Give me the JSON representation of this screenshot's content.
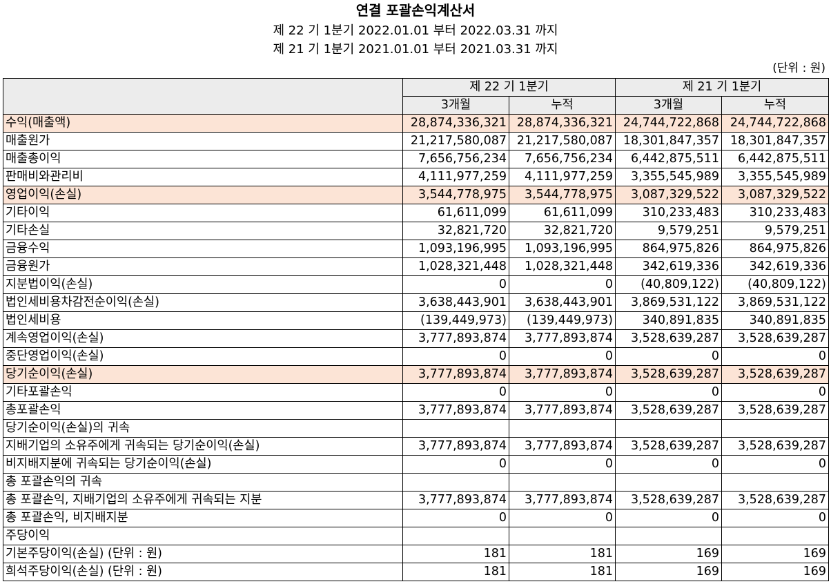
{
  "title": "연결 포괄손익계산서",
  "periods": [
    "제 22 기 1분기 2022.01.01 부터 2022.03.31 까지",
    "제 21 기 1분기 2021.01.01 부터 2021.03.31 까지"
  ],
  "unit": "(단위 : 원)",
  "table": {
    "period_headers": [
      "제 22 기 1분기",
      "제 21 기 1분기"
    ],
    "sub_headers": [
      "3개월",
      "누적",
      "3개월",
      "누적"
    ],
    "highlight_color": "#fce4d6",
    "rows": [
      {
        "label": "수익(매출액)",
        "values": [
          "28,874,336,321",
          "28,874,336,321",
          "24,744,722,868",
          "24,744,722,868"
        ]
      },
      {
        "label": "매출원가",
        "values": [
          "21,217,580,087",
          "21,217,580,087",
          "18,301,847,357",
          "18,301,847,357"
        ]
      },
      {
        "label": "매출총이익",
        "values": [
          "7,656,756,234",
          "7,656,756,234",
          "6,442,875,511",
          "6,442,875,511"
        ]
      },
      {
        "label": "판매비와관리비",
        "values": [
          "4,111,977,259",
          "4,111,977,259",
          "3,355,545,989",
          "3,355,545,989"
        ]
      },
      {
        "label": "영업이익(손실)",
        "values": [
          "3,544,778,975",
          "3,544,778,975",
          "3,087,329,522",
          "3,087,329,522"
        ]
      },
      {
        "label": "기타이익",
        "values": [
          "61,611,099",
          "61,611,099",
          "310,233,483",
          "310,233,483"
        ]
      },
      {
        "label": "기타손실",
        "values": [
          "32,821,720",
          "32,821,720",
          "9,579,251",
          "9,579,251"
        ]
      },
      {
        "label": "금융수익",
        "values": [
          "1,093,196,995",
          "1,093,196,995",
          "864,975,826",
          "864,975,826"
        ]
      },
      {
        "label": "금융원가",
        "values": [
          "1,028,321,448",
          "1,028,321,448",
          "342,619,336",
          "342,619,336"
        ]
      },
      {
        "label": "지분법이익(손실)",
        "values": [
          "0",
          "0",
          "(40,809,122)",
          "(40,809,122)"
        ]
      },
      {
        "label": "법인세비용차감전순이익(손실)",
        "values": [
          "3,638,443,901",
          "3,638,443,901",
          "3,869,531,122",
          "3,869,531,122"
        ]
      },
      {
        "label": "법인세비용",
        "values": [
          "(139,449,973)",
          "(139,449,973)",
          "340,891,835",
          "340,891,835"
        ]
      },
      {
        "label": "계속영업이익(손실)",
        "values": [
          "3,777,893,874",
          "3,777,893,874",
          "3,528,639,287",
          "3,528,639,287"
        ]
      },
      {
        "label": "중단영업이익(손실)",
        "values": [
          "0",
          "0",
          "0",
          "0"
        ]
      },
      {
        "label": "당기순이익(손실)",
        "values": [
          "3,777,893,874",
          "3,777,893,874",
          "3,528,639,287",
          "3,528,639,287"
        ]
      },
      {
        "label": "기타포괄손익",
        "values": [
          "0",
          "0",
          "0",
          "0"
        ]
      },
      {
        "label": "총포괄손익",
        "values": [
          "3,777,893,874",
          "3,777,893,874",
          "3,528,639,287",
          "3,528,639,287"
        ]
      },
      {
        "label": "당기순이익(손실)의 귀속",
        "values": [
          "",
          "",
          "",
          ""
        ]
      },
      {
        "label": "지배기업의 소유주에게 귀속되는 당기순이익(손실)",
        "values": [
          "3,777,893,874",
          "3,777,893,874",
          "3,528,639,287",
          "3,528,639,287"
        ]
      },
      {
        "label": "비지배지분에 귀속되는 당기순이익(손실)",
        "values": [
          "0",
          "0",
          "0",
          "0"
        ]
      },
      {
        "label": "총 포괄손익의 귀속",
        "values": [
          "",
          "",
          "",
          ""
        ]
      },
      {
        "label": "총 포괄손익, 지배기업의 소유주에게 귀속되는 지분",
        "values": [
          "3,777,893,874",
          "3,777,893,874",
          "3,528,639,287",
          "3,528,639,287"
        ]
      },
      {
        "label": "총 포괄손익, 비지배지분",
        "values": [
          "0",
          "0",
          "0",
          "0"
        ]
      },
      {
        "label": "주당이익",
        "values": [
          "",
          "",
          "",
          ""
        ]
      },
      {
        "label": "기본주당이익(손실) (단위 : 원)",
        "values": [
          "181",
          "181",
          "169",
          "169"
        ]
      },
      {
        "label": "희석주당이익(손실) (단위 : 원)",
        "values": [
          "181",
          "181",
          "169",
          "169"
        ]
      }
    ]
  }
}
